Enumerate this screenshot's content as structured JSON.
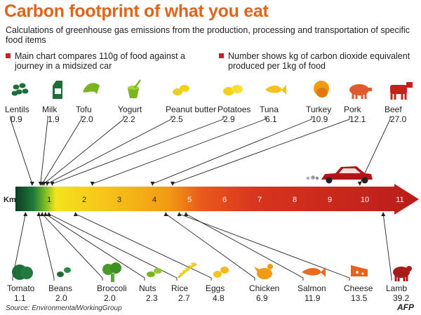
{
  "title": "Carbon footprint of what you eat",
  "subtitle": "Calculations of greenhouse gas emissions from the production, processing and transportation of specific food items",
  "note_left": "Main chart compares 110g of food against a journey in a midsized car",
  "note_right": "Number shows kg of carbon dioxide equivalent produced per 1kg of food",
  "source": "Source: EnvironmentalWorkingGroup",
  "logo": "AFP",
  "colors": {
    "title": "#e0641a",
    "icons": [
      "#1e6e3a",
      "#7ab51d",
      "#f2d21a",
      "#f08a10",
      "#d8341e",
      "#a81b17"
    ]
  },
  "chart_data": {
    "type": "bar",
    "axis_label": "Km",
    "ticks": [
      "1",
      "2",
      "3",
      "4",
      "5",
      "6",
      "7",
      "8",
      "9",
      "10",
      "11"
    ],
    "xlim": [
      0,
      11.5
    ],
    "top_items": [
      {
        "name": "Lentils",
        "value": "0.9",
        "km": 0.5,
        "icon": "lentils-icon"
      },
      {
        "name": "Milk",
        "value": "1.9",
        "km": 0.75,
        "icon": "milk-carton-icon"
      },
      {
        "name": "Tofu",
        "value": "2.0",
        "km": 0.8,
        "icon": "tofu-icon"
      },
      {
        "name": "Yogurt",
        "value": "2.2",
        "km": 0.85,
        "icon": "yogurt-icon"
      },
      {
        "name": "Peanut butter",
        "value": "2.5",
        "km": 0.95,
        "icon": "peanut-icon"
      },
      {
        "name": "Potatoes",
        "value": "2.9",
        "km": 1.1,
        "icon": "potatoes-icon"
      },
      {
        "name": "Tuna",
        "value": "6.1",
        "km": 2.3,
        "icon": "tuna-icon"
      },
      {
        "name": "Turkey",
        "value": "10.9",
        "km": 4.1,
        "icon": "turkey-icon"
      },
      {
        "name": "Pork",
        "value": "12.1",
        "km": 4.7,
        "icon": "pig-icon"
      },
      {
        "name": "Beef",
        "value": "27.0",
        "km": 10.3,
        "icon": "cow-icon"
      }
    ],
    "bottom_items": [
      {
        "name": "Tomato",
        "value": "1.1",
        "km": 0.3,
        "icon": "tomato-icon"
      },
      {
        "name": "Beans",
        "value": "2.0",
        "km": 0.7,
        "icon": "beans-icon"
      },
      {
        "name": "Broccoli",
        "value": "2.0",
        "km": 0.8,
        "icon": "broccoli-icon"
      },
      {
        "name": "Nuts",
        "value": "2.3",
        "km": 0.9,
        "icon": "nuts-icon"
      },
      {
        "name": "Rice",
        "value": "2.7",
        "km": 1.0,
        "icon": "rice-icon"
      },
      {
        "name": "Eggs",
        "value": "4.8",
        "km": 1.8,
        "icon": "eggs-icon"
      },
      {
        "name": "Chicken",
        "value": "6.9",
        "km": 4.5,
        "icon": "chicken-icon"
      },
      {
        "name": "Salmon",
        "value": "11.9",
        "km": 5.1,
        "icon": "salmon-icon"
      },
      {
        "name": "Cheese",
        "value": "13.5",
        "km": 4.9,
        "icon": "cheese-icon"
      },
      {
        "name": "Lamb",
        "value": "39.2",
        "km": 11.0,
        "icon": "sheep-icon"
      }
    ]
  }
}
